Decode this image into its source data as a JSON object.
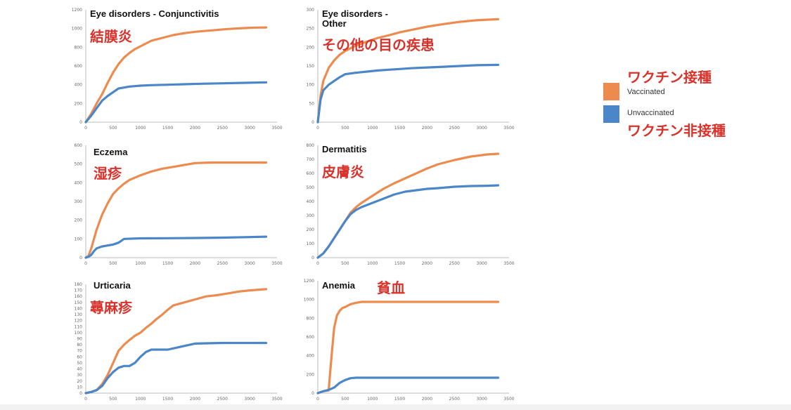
{
  "legend": {
    "vaccinated_jp": "ワクチン接種",
    "vaccinated": "Vaccinated",
    "unvaccinated": "Unvaccinated",
    "unvaccinated_jp": "ワクチン非接種",
    "vaccinated_color": "#ed8b4f",
    "unvaccinated_color": "#4a86c8"
  },
  "chart_data": [
    {
      "type": "line",
      "title": "Eye disorders - Conjunctivitis",
      "title_jp": "結膜炎",
      "xlim": [
        0,
        3500
      ],
      "xticks": [
        0,
        500,
        1000,
        1500,
        2000,
        2500,
        3000,
        3500
      ],
      "ylim": [
        0,
        1200
      ],
      "yticks": [
        0,
        200,
        400,
        600,
        800,
        1000,
        1200
      ],
      "series": [
        {
          "name": "Vaccinated",
          "x": [
            0,
            100,
            200,
            300,
            400,
            500,
            600,
            700,
            800,
            900,
            1000,
            1200,
            1400,
            1600,
            1800,
            2000,
            2300,
            2600,
            2900,
            3100,
            3300
          ],
          "y": [
            0,
            90,
            200,
            300,
            420,
            530,
            620,
            690,
            740,
            780,
            810,
            870,
            900,
            930,
            950,
            965,
            980,
            995,
            1005,
            1010,
            1012
          ]
        },
        {
          "name": "Unvaccinated",
          "x": [
            0,
            100,
            200,
            300,
            400,
            500,
            600,
            700,
            800,
            1000,
            1200,
            1500,
            1800,
            2100,
            2500,
            2900,
            3300
          ],
          "y": [
            0,
            70,
            150,
            230,
            280,
            320,
            360,
            370,
            380,
            390,
            395,
            400,
            405,
            410,
            415,
            420,
            425
          ]
        }
      ]
    },
    {
      "type": "line",
      "title": "Eye disorders -\nOther",
      "title_jp": "その他の目の疾患",
      "xlim": [
        0,
        3500
      ],
      "xticks": [
        0,
        500,
        1000,
        1500,
        2000,
        2500,
        3000,
        3500
      ],
      "ylim": [
        0,
        300
      ],
      "yticks": [
        0,
        50,
        100,
        150,
        200,
        250,
        300
      ],
      "series": [
        {
          "name": "Vaccinated",
          "x": [
            0,
            50,
            100,
            200,
            300,
            400,
            500,
            700,
            900,
            1100,
            1300,
            1500,
            1700,
            2000,
            2300,
            2600,
            2900,
            3300
          ],
          "y": [
            0,
            70,
            110,
            145,
            165,
            180,
            190,
            205,
            215,
            225,
            232,
            240,
            246,
            255,
            262,
            268,
            272,
            275
          ]
        },
        {
          "name": "Unvaccinated",
          "x": [
            0,
            50,
            100,
            200,
            300,
            400,
            500,
            700,
            900,
            1100,
            1300,
            1500,
            1700,
            2000,
            2300,
            2600,
            2900,
            3300
          ],
          "y": [
            0,
            60,
            85,
            100,
            110,
            120,
            128,
            132,
            135,
            138,
            140,
            142,
            144,
            146,
            148,
            150,
            152,
            153
          ]
        }
      ]
    },
    {
      "type": "line",
      "title": "Eczema",
      "title_jp": "湿疹",
      "xlim": [
        0,
        3500
      ],
      "xticks": [
        0,
        500,
        1000,
        1500,
        2000,
        2500,
        3000,
        3500
      ],
      "ylim": [
        0,
        600
      ],
      "yticks": [
        0,
        100,
        200,
        300,
        400,
        500,
        600
      ],
      "series": [
        {
          "name": "Vaccinated",
          "x": [
            0,
            50,
            100,
            200,
            300,
            400,
            500,
            600,
            700,
            800,
            1000,
            1200,
            1400,
            1600,
            1800,
            2000,
            2300,
            2700,
            3000,
            3300
          ],
          "y": [
            0,
            10,
            50,
            150,
            230,
            290,
            340,
            370,
            395,
            415,
            440,
            460,
            475,
            485,
            495,
            505,
            508,
            508,
            508,
            508
          ]
        },
        {
          "name": "Unvaccinated",
          "x": [
            0,
            50,
            100,
            150,
            200,
            300,
            400,
            500,
            600,
            700,
            1000,
            1500,
            2000,
            2500,
            3000,
            3300
          ],
          "y": [
            0,
            5,
            15,
            35,
            50,
            60,
            65,
            70,
            80,
            100,
            103,
            104,
            105,
            107,
            110,
            112
          ]
        }
      ]
    },
    {
      "type": "line",
      "title": "Dermatitis",
      "title_jp": "皮膚炎",
      "xlim": [
        0,
        3500
      ],
      "xticks": [
        0,
        500,
        1000,
        1500,
        2000,
        2500,
        3000,
        3500
      ],
      "ylim": [
        0,
        800
      ],
      "yticks": [
        0,
        100,
        200,
        300,
        400,
        500,
        600,
        700,
        800
      ],
      "series": [
        {
          "name": "Vaccinated",
          "x": [
            0,
            100,
            200,
            300,
            400,
            500,
            600,
            700,
            800,
            1000,
            1200,
            1400,
            1600,
            1800,
            2000,
            2200,
            2500,
            2800,
            3100,
            3300
          ],
          "y": [
            0,
            30,
            80,
            140,
            200,
            260,
            320,
            360,
            390,
            440,
            490,
            530,
            565,
            600,
            635,
            665,
            695,
            720,
            735,
            740
          ]
        },
        {
          "name": "Unvaccinated",
          "x": [
            0,
            100,
            200,
            300,
            400,
            500,
            600,
            700,
            800,
            1000,
            1200,
            1400,
            1600,
            1800,
            2000,
            2200,
            2500,
            2800,
            3100,
            3300
          ],
          "y": [
            0,
            30,
            80,
            140,
            200,
            260,
            310,
            340,
            360,
            390,
            420,
            450,
            470,
            480,
            490,
            495,
            505,
            510,
            512,
            515
          ]
        }
      ]
    },
    {
      "type": "line",
      "title": "Urticaria",
      "title_jp": "蕁麻疹",
      "xlim": [
        0,
        3500
      ],
      "xticks": [
        0,
        500,
        1000,
        1500,
        2000,
        2500,
        3000,
        3500
      ],
      "ylim": [
        0,
        180
      ],
      "yticks": [
        0,
        10,
        20,
        30,
        40,
        50,
        60,
        70,
        80,
        90,
        100,
        110,
        120,
        130,
        140,
        150,
        160,
        170,
        180
      ],
      "series": [
        {
          "name": "Vaccinated",
          "x": [
            0,
            100,
            200,
            300,
            400,
            500,
            600,
            700,
            800,
            900,
            1000,
            1100,
            1200,
            1300,
            1400,
            1500,
            1600,
            1800,
            2000,
            2200,
            2400,
            2600,
            2800,
            3000,
            3300
          ],
          "y": [
            0,
            2,
            5,
            15,
            30,
            50,
            70,
            80,
            88,
            95,
            100,
            108,
            115,
            123,
            130,
            138,
            145,
            150,
            155,
            160,
            162,
            165,
            168,
            170,
            172
          ]
        },
        {
          "name": "Unvaccinated",
          "x": [
            0,
            100,
            200,
            300,
            400,
            500,
            600,
            700,
            800,
            900,
            1000,
            1100,
            1200,
            1500,
            1800,
            2000,
            2500,
            3000,
            3300
          ],
          "y": [
            0,
            2,
            5,
            12,
            25,
            35,
            42,
            45,
            45,
            50,
            60,
            68,
            72,
            72,
            78,
            82,
            83,
            83,
            83
          ]
        }
      ]
    },
    {
      "type": "line",
      "title": "Anemia",
      "title_jp": "貧血",
      "xlim": [
        0,
        3500
      ],
      "xticks": [
        0,
        500,
        1000,
        1500,
        2000,
        2500,
        3000,
        3500
      ],
      "ylim": [
        0,
        1200
      ],
      "yticks": [
        0,
        200,
        400,
        600,
        800,
        1000,
        1200
      ],
      "series": [
        {
          "name": "Vaccinated",
          "x": [
            0,
            100,
            200,
            230,
            260,
            300,
            350,
            400,
            450,
            500,
            600,
            700,
            800,
            900,
            1200,
            1800,
            2400,
            3000,
            3300
          ],
          "y": [
            0,
            20,
            30,
            250,
            450,
            700,
            830,
            880,
            910,
            920,
            950,
            965,
            975,
            975,
            975,
            975,
            975,
            975,
            975
          ]
        },
        {
          "name": "Unvaccinated",
          "x": [
            0,
            100,
            200,
            300,
            400,
            500,
            600,
            700,
            800,
            1000,
            1500,
            2000,
            2500,
            3000,
            3300
          ],
          "y": [
            0,
            20,
            35,
            60,
            110,
            140,
            160,
            165,
            165,
            165,
            165,
            165,
            165,
            165,
            165
          ]
        }
      ]
    }
  ]
}
